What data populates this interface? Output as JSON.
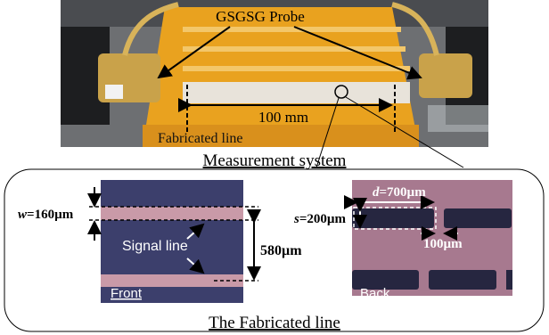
{
  "photo": {
    "probe_label": "GSGSG Probe",
    "length_label": "100 mm",
    "line_label": "Fabricated line",
    "caption": "Measurement system"
  },
  "front": {
    "width_label": {
      "var": "w",
      "text": "=160µm"
    },
    "signal_label": "Signal line",
    "pitch_label": "580µm",
    "caption": "Front"
  },
  "back": {
    "s_label": {
      "var": "s",
      "text": "=200µm"
    },
    "d_label": {
      "var": "d",
      "text": "=700µm"
    },
    "gap_label": "100µm",
    "caption": "Back"
  },
  "caption": "The Fabricated line"
}
